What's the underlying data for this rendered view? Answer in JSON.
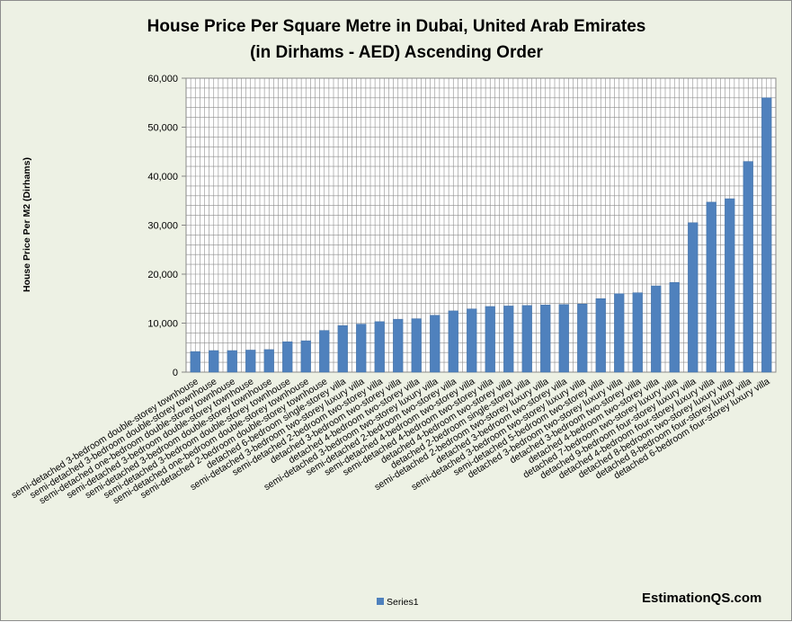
{
  "chart_data": {
    "type": "bar",
    "title": [
      "House Price Per Square Metre in Dubai, United Arab Emirates",
      "(in Dirhams - AED) Ascending Order"
    ],
    "ylabel": "House Price Per M2 (Dirhams)",
    "ylim": [
      0,
      60000
    ],
    "ytick_labels": [
      "0",
      "10,000",
      "20,000",
      "30,000",
      "40,000",
      "50,000",
      "60,000"
    ],
    "yticks": [
      0,
      10000,
      20000,
      30000,
      40000,
      50000,
      60000
    ],
    "grid": true,
    "legend_position": "bottom",
    "bar_color": "#4f81bd",
    "categories": [
      "semi-detached 3-bedroom double-storey townhouse",
      "semi-detached 3-bedroom double-storey townhouse",
      "semi-detached one-bedroom double-storey townhouse",
      "semi-detached 3-bedroom double-storey townhouse",
      "semi-detached 3-bedroom double-storey townhouse",
      "semi-detached 3-bedroom double-storey townhouse",
      "semi-detached one-bedroom double-storey townhouse",
      "semi-detached 2-bedroom double-storey townhouse",
      "detached 6-bedroom single-storey villa",
      "semi-detached 3-bedroom two-storey luxury villa",
      "semi-detached 2-bedroom two-storey villa",
      "detached 3-bedroom two-storey villa",
      "detached 4-bedroom two-storey villa",
      "semi-detached 3-bedroom two-storey luxury villa",
      "semi-detached 2-bedroom two-storey villa",
      "semi-detached 4-bedroom two-storey villa",
      "semi-detached 4-bedroom two-storey villa",
      "detached 4-bedroom two-storey villa",
      "detached 2-bedroom single-storey villa",
      "semi-detached 2-bedroom two-storey luxury villa",
      "detached 3-bedroom two-storey villa",
      "semi-detached 3-bedroom two-storey luxury villa",
      "semi-detached 5-bedroom two-storey villa",
      "detached 3-bedroom two-storey luxury villa",
      "detached 3-bedroom two-storey villa",
      "detached 4-bedroom two-storey villa",
      "detached 7-bedroom two-storey luxury villa",
      "detached 9-bedroom four-storey luxury villa",
      "detached 4-bedroom four-storey luxury villa",
      "detached 8-bedroom two-storey luxury villa",
      "detached 8-bedroom four-storey luxury villa",
      "detached 6-bedroom four-storey luxury villa"
    ],
    "series": [
      {
        "name": "Series1",
        "values": [
          4200,
          4400,
          4400,
          4500,
          4600,
          6200,
          6400,
          8500,
          9500,
          9800,
          10300,
          10800,
          10900,
          11600,
          12500,
          12900,
          13400,
          13500,
          13600,
          13700,
          13800,
          13900,
          15000,
          16000,
          16200,
          17600,
          18300,
          30500,
          34700,
          35400,
          43000,
          56000
        ]
      }
    ]
  },
  "footer": {
    "brand": "EstimationQS.com"
  }
}
